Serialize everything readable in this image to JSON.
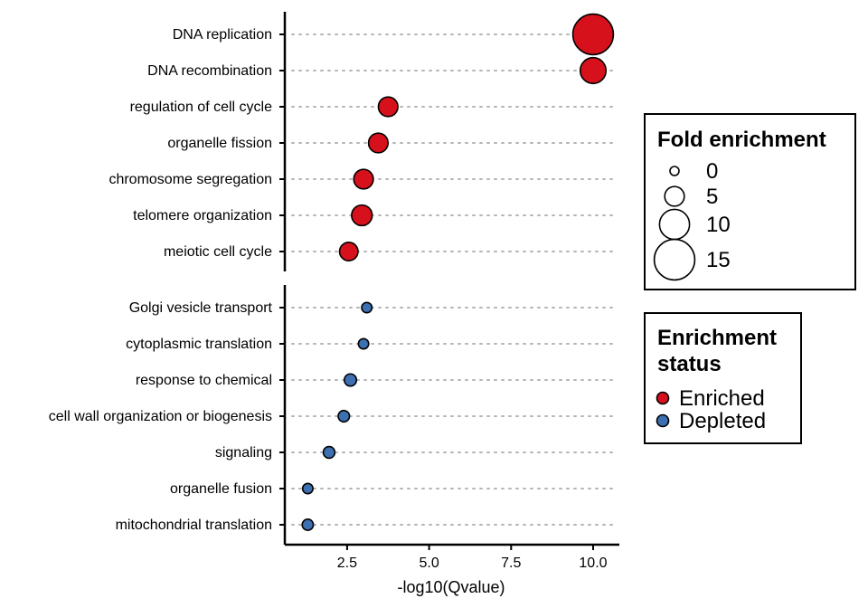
{
  "chart_data": {
    "type": "scatter",
    "xlabel": "-log10(Qvalue)",
    "xlim": [
      0.6,
      10.8
    ],
    "xticks": [
      2.5,
      5.0,
      7.5,
      10.0
    ],
    "xtick_labels": [
      "2.5",
      "5.0",
      "7.5",
      "10.0"
    ],
    "grid": "dotted horizontal guide per category",
    "panels": [
      {
        "status": "Enriched",
        "points": [
          {
            "term": "DNA replication",
            "x": 10.0,
            "fold": 15.0
          },
          {
            "term": "DNA recombination",
            "x": 10.0,
            "fold": 8.0
          },
          {
            "term": "regulation of cell cycle",
            "x": 3.75,
            "fold": 5.0
          },
          {
            "term": "organelle fission",
            "x": 3.45,
            "fold": 5.0
          },
          {
            "term": "chromosome segregation",
            "x": 3.0,
            "fold": 5.0
          },
          {
            "term": "telomere organization",
            "x": 2.95,
            "fold": 5.5
          },
          {
            "term": "meiotic cell cycle",
            "x": 2.55,
            "fold": 4.5
          }
        ]
      },
      {
        "status": "Depleted",
        "points": [
          {
            "term": "Golgi vesicle transport",
            "x": 3.1,
            "fold": 0.6
          },
          {
            "term": "cytoplasmic translation",
            "x": 3.0,
            "fold": 0.6
          },
          {
            "term": "response to chemical",
            "x": 2.6,
            "fold": 1.5
          },
          {
            "term": "cell wall organization or biogenesis",
            "x": 2.4,
            "fold": 1.1
          },
          {
            "term": "signaling",
            "x": 1.95,
            "fold": 1.2
          },
          {
            "term": "organelle fusion",
            "x": 1.3,
            "fold": 0.6
          },
          {
            "term": "mitochondrial translation",
            "x": 1.3,
            "fold": 1.0
          }
        ]
      }
    ],
    "legends": {
      "size": {
        "title": "Fold enrichment",
        "values": [
          0,
          5,
          10,
          15
        ],
        "labels": [
          "0",
          "5",
          "10",
          "15"
        ]
      },
      "color": {
        "title": "Enrichment status",
        "title_lines": [
          "Enrichment",
          "status"
        ],
        "items": [
          {
            "label": "Enriched",
            "color": "#d7111b"
          },
          {
            "label": "Depleted",
            "color": "#3d70b1"
          }
        ]
      },
      "placement": "right"
    },
    "colors": {
      "Enriched": "#d7111b",
      "Depleted": "#3d70b1",
      "guide": "#b5b5b5"
    }
  }
}
